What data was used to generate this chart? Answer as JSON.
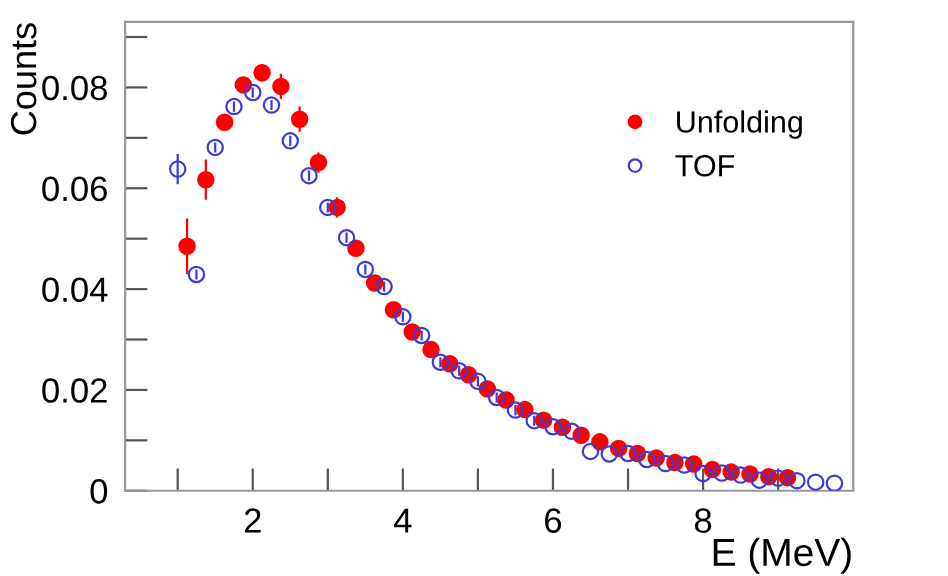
{
  "chart_data": {
    "type": "scatter",
    "xlabel": "E (MeV)",
    "ylabel": "Counts",
    "xlim": [
      0.3,
      10
    ],
    "ylim": [
      0,
      0.093
    ],
    "xticks": [
      {
        "value": 1,
        "label": null
      },
      2,
      {
        "value": 3,
        "label": null
      },
      4,
      {
        "value": 5,
        "label": null
      },
      6,
      {
        "value": 7,
        "label": null
      },
      8,
      {
        "value": 9,
        "label": null
      }
    ],
    "yticks": [
      0,
      {
        "value": 0.01,
        "label": null
      },
      {
        "value": 0.02,
        "label": "0.02"
      },
      {
        "value": 0.03,
        "label": null
      },
      {
        "value": 0.04,
        "label": "0.04"
      },
      {
        "value": 0.05,
        "label": null
      },
      {
        "value": 0.06,
        "label": "0.06"
      },
      {
        "value": 0.07,
        "label": null
      },
      {
        "value": 0.08,
        "label": "0.08"
      },
      {
        "value": 0.09,
        "label": null
      }
    ],
    "grid": false,
    "legend": "top right",
    "marker": "circle",
    "series": [
      {
        "name": "Unfolding",
        "color": "#ff0000",
        "x": [
          1.125,
          1.375,
          1.625,
          1.875,
          2.125,
          2.375,
          2.625,
          2.875,
          3.125,
          3.375,
          3.625,
          3.875,
          4.125,
          4.375,
          4.625,
          4.875,
          5.125,
          5.375,
          5.625,
          5.875,
          6.125,
          6.375,
          6.625,
          6.875,
          7.125,
          7.375,
          7.625,
          7.875,
          8.125,
          8.375,
          8.625,
          8.875,
          9.125
        ],
        "values": [
          0.0485,
          0.0617,
          0.0731,
          0.0805,
          0.0829,
          0.0802,
          0.0737,
          0.0651,
          0.0562,
          0.0481,
          0.0412,
          0.0359,
          0.0315,
          0.028,
          0.0252,
          0.023,
          0.0202,
          0.018,
          0.0161,
          0.014,
          0.0126,
          0.011,
          0.0097,
          0.0084,
          0.0074,
          0.0065,
          0.0056,
          0.0053,
          0.0042,
          0.0037,
          0.0033,
          0.0028,
          0.0026
        ],
        "errors": [
          0.0055,
          0.004,
          0.0015,
          0.001,
          0.0017,
          0.0025,
          0.0025,
          0.002,
          0.002,
          0.0015,
          0.0015,
          null,
          null,
          null,
          null,
          null,
          null,
          null,
          null,
          null,
          null,
          null,
          null,
          null,
          null,
          null,
          null,
          null,
          null,
          null,
          null,
          null,
          null
        ]
      },
      {
        "name": "TOF",
        "color": "#3c3cd8",
        "x": [
          1.0,
          1.25,
          1.5,
          1.75,
          2.0,
          2.25,
          2.5,
          2.75,
          3.0,
          3.25,
          3.5,
          3.75,
          4.0,
          4.25,
          4.5,
          4.75,
          5.0,
          5.25,
          5.5,
          5.75,
          6.0,
          6.25,
          6.5,
          6.75,
          7.0,
          7.25,
          7.5,
          7.75,
          8.0,
          8.25,
          8.5,
          8.75,
          9.0,
          9.25,
          9.5,
          9.75
        ],
        "values": [
          0.0638,
          0.0429,
          0.0681,
          0.0762,
          0.079,
          0.0765,
          0.0694,
          0.0625,
          0.0562,
          0.0502,
          0.0439,
          0.0405,
          0.0345,
          0.0308,
          0.0255,
          0.0238,
          0.0217,
          0.0185,
          0.016,
          0.0139,
          0.0127,
          0.0118,
          0.0078,
          0.0073,
          0.0074,
          0.0062,
          0.0054,
          0.0051,
          0.0034,
          0.0035,
          0.0031,
          0.0021,
          0.0025,
          0.002,
          0.0017,
          0.0015
        ],
        "errors": [
          0.003,
          0.001,
          0.001,
          0.001,
          0.001,
          0.001,
          0.001,
          0.001,
          0.001,
          0.001,
          0.001,
          0.001,
          0.001,
          0.001,
          0.001,
          0.001,
          0.001,
          0.001,
          0.001,
          0.001,
          null,
          null,
          null,
          null,
          null,
          null,
          null,
          null,
          null,
          null,
          null,
          null,
          null,
          null,
          null,
          null
        ]
      }
    ]
  }
}
